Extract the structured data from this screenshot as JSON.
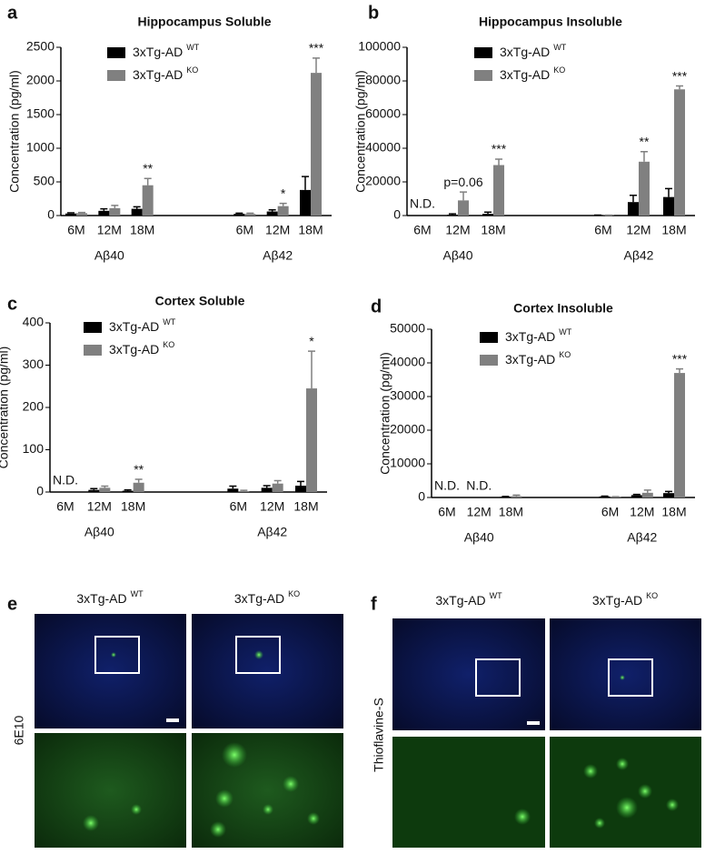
{
  "chart_data": [
    {
      "type": "bar",
      "panel": "a",
      "title": "Hippocampus Soluble",
      "y_label": "Concentration (pg/ml)",
      "categories": [
        "6M",
        "12M",
        "18M",
        "6M",
        "12M",
        "18M"
      ],
      "groups": [
        "Aβ40",
        "Aβ42"
      ],
      "series": [
        {
          "name": "3xTg-AD",
          "superscript": "WT",
          "color": "#000000",
          "values": [
            30,
            70,
            100,
            25,
            60,
            380
          ],
          "errors": [
            10,
            30,
            30,
            10,
            25,
            200
          ]
        },
        {
          "name": "3xTg-AD",
          "superscript": "KO",
          "color": "#808080",
          "values": [
            35,
            110,
            450,
            25,
            140,
            2120
          ],
          "errors": [
            10,
            40,
            100,
            10,
            40,
            220
          ]
        }
      ],
      "annotations": [
        null,
        null,
        "**",
        null,
        "*",
        "***"
      ],
      "ylim": [
        0,
        2500
      ],
      "yticks": [
        0,
        500,
        1000,
        1500,
        2000,
        2500
      ]
    },
    {
      "type": "bar",
      "panel": "b",
      "title": "Hippocampus Insoluble",
      "y_label": "Concentration (pg/ml)",
      "categories": [
        "6M",
        "12M",
        "18M",
        "6M",
        "12M",
        "18M"
      ],
      "groups": [
        "Aβ40",
        "Aβ42"
      ],
      "series": [
        {
          "name": "3xTg-AD",
          "superscript": "WT",
          "color": "#000000",
          "values": [
            null,
            500,
            1000,
            200,
            8000,
            11000
          ],
          "errors": [
            null,
            500,
            1000,
            100,
            4000,
            5000
          ]
        },
        {
          "name": "3xTg-AD",
          "superscript": "KO",
          "color": "#808080",
          "values": [
            null,
            9000,
            30000,
            200,
            32000,
            75000
          ],
          "errors": [
            null,
            5000,
            3500,
            100,
            6000,
            2000
          ]
        }
      ],
      "annotations": [
        "N.D.",
        "p=0.06",
        "***",
        null,
        "**",
        "***"
      ],
      "ylim": [
        0,
        100000
      ],
      "yticks": [
        0,
        20000,
        40000,
        60000,
        80000,
        100000
      ]
    },
    {
      "type": "bar",
      "panel": "c",
      "title": "Cortex Soluble",
      "y_label": "Concentration (pg/ml)",
      "categories": [
        "6M",
        "12M",
        "18M",
        "6M",
        "12M",
        "18M"
      ],
      "groups": [
        "Aβ40",
        "Aβ42"
      ],
      "series": [
        {
          "name": "3xTg-AD",
          "superscript": "WT",
          "color": "#000000",
          "values": [
            null,
            5,
            3,
            8,
            10,
            15
          ],
          "errors": [
            null,
            3,
            2,
            6,
            5,
            10
          ]
        },
        {
          "name": "3xTg-AD",
          "superscript": "KO",
          "color": "#808080",
          "values": [
            null,
            10,
            22,
            2,
            20,
            245
          ],
          "errors": [
            null,
            4,
            8,
            2,
            7,
            88
          ]
        }
      ],
      "annotations": [
        "N.D.",
        null,
        "**",
        null,
        null,
        "*"
      ],
      "ylim": [
        0,
        400
      ],
      "yticks": [
        0,
        100,
        200,
        300,
        400
      ]
    },
    {
      "type": "bar",
      "panel": "d",
      "title": "Cortex Insoluble",
      "y_label": "Concentration (pg/ml)",
      "categories": [
        "6M",
        "12M",
        "18M",
        "6M",
        "12M",
        "18M"
      ],
      "groups": [
        "Aβ40",
        "Aβ42"
      ],
      "series": [
        {
          "name": "3xTg-AD",
          "superscript": "WT",
          "color": "#000000",
          "values": [
            null,
            null,
            200,
            300,
            700,
            1300
          ],
          "errors": [
            null,
            null,
            100,
            100,
            200,
            500
          ]
        },
        {
          "name": "3xTg-AD",
          "superscript": "KO",
          "color": "#808080",
          "values": [
            null,
            null,
            400,
            150,
            1400,
            37000
          ],
          "errors": [
            null,
            null,
            300,
            100,
            800,
            1200
          ]
        }
      ],
      "annotations": [
        "N.D.",
        "N.D.",
        null,
        null,
        null,
        "***"
      ],
      "ylim": [
        0,
        50000
      ],
      "yticks": [
        0,
        10000,
        20000,
        30000,
        40000,
        50000
      ]
    }
  ],
  "images": [
    {
      "panel": "e",
      "row_label": "6E10",
      "columns": [
        {
          "name": "3xTg-AD",
          "superscript": "WT"
        },
        {
          "name": "3xTg-AD",
          "superscript": "KO"
        }
      ]
    },
    {
      "panel": "f",
      "row_label": "Thioflavine-S",
      "columns": [
        {
          "name": "3xTg-AD",
          "superscript": "WT"
        },
        {
          "name": "3xTg-AD",
          "superscript": "KO"
        }
      ]
    }
  ]
}
